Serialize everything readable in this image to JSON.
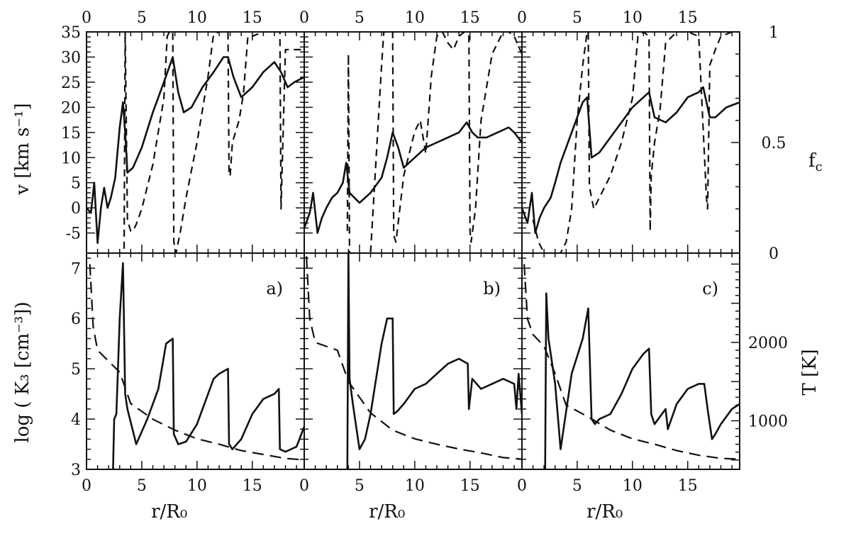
{
  "chart_data": [
    {
      "panel": "a)",
      "type": "line",
      "top": {
        "xlim": [
          0,
          19.7
        ],
        "ylim_left": [
          -9,
          35
        ],
        "ylim_right": [
          0,
          1.0
        ],
        "series": [
          {
            "axis": "left",
            "style": "solid",
            "x": [
              0,
              0.4,
              0.7,
              1.0,
              1.3,
              1.6,
              1.9,
              2.2,
              2.6,
              3.0,
              3.3,
              3.5,
              3.7,
              4.2,
              5.0,
              6.0,
              7.0,
              7.8,
              8.3,
              8.8,
              9.5,
              10.5,
              11.5,
              12.4,
              12.8,
              13.3,
              14.0,
              15.0,
              16.0,
              17.0,
              17.6,
              18.2,
              18.8,
              19.7
            ],
            "y": [
              0,
              -1,
              5,
              -7,
              0,
              4,
              0,
              2,
              6,
              16,
              21,
              15,
              7,
              8,
              12,
              19,
              25,
              30,
              23,
              19,
              20,
              24,
              27,
              30,
              30,
              26,
              22,
              24,
              27,
              29,
              27,
              24,
              25,
              26
            ]
          },
          {
            "axis": "right",
            "style": "dashed",
            "x": [
              2.7,
              3.4,
              3.5,
              3.7,
              4.0,
              4.2,
              4.5,
              5.0,
              6.0,
              7.0,
              7.3,
              7.5,
              7.8,
              7.9,
              8.1,
              8.5,
              9.0,
              10.0,
              11.0,
              11.5,
              12.0,
              12.4,
              12.8,
              12.9,
              13.0,
              13.2,
              13.8,
              14.2,
              14.6,
              15.0,
              16.0,
              17.0,
              17.5,
              17.6,
              18.0,
              19.7
            ],
            "y": [
              0,
              0.0,
              1.0,
              0.15,
              0.1,
              0.1,
              0.13,
              0.2,
              0.4,
              0.7,
              0.98,
              1.0,
              1.0,
              0.05,
              0.0,
              0.1,
              0.25,
              0.5,
              0.8,
              0.99,
              1.0,
              1.0,
              1.0,
              0.35,
              0.35,
              0.5,
              0.6,
              0.72,
              0.98,
              0.98,
              1.0,
              1.0,
              1.0,
              0.2,
              0.92,
              0.92
            ]
          }
        ]
      },
      "bottom": {
        "xlim": [
          0,
          19.7
        ],
        "ylim_left": [
          3,
          7.3
        ],
        "ylim_right": [
          380,
          3140
        ],
        "series": [
          {
            "axis": "left",
            "style": "solid",
            "x": [
              2.4,
              2.5,
              2.7,
              3.0,
              3.3,
              3.5,
              3.7,
              4.5,
              5.5,
              6.5,
              7.2,
              7.8,
              7.9,
              8.3,
              9.0,
              10.0,
              11.0,
              11.5,
              12.0,
              12.8,
              12.9,
              13.2,
              14.0,
              15.0,
              16.0,
              17.0,
              17.4,
              17.5,
              18.0,
              19.0,
              19.7
            ],
            "y": [
              3.0,
              4.0,
              4.1,
              6.0,
              7.1,
              4.5,
              4.2,
              3.5,
              4.0,
              4.6,
              5.5,
              5.6,
              3.7,
              3.5,
              3.55,
              3.9,
              4.5,
              4.8,
              4.9,
              5.0,
              3.5,
              3.4,
              3.6,
              4.1,
              4.4,
              4.5,
              4.6,
              3.4,
              3.35,
              3.45,
              3.85
            ]
          },
          {
            "axis": "right",
            "style": "longdash",
            "x": [
              0.3,
              0.6,
              1.0,
              2.0,
              3.0,
              4.0,
              6.0,
              8.0,
              10.0,
              12.0,
              14.0,
              16.0,
              18.0,
              19.7
            ],
            "y": [
              3000,
              2200,
              1900,
              1760,
              1620,
              1220,
              1020,
              880,
              770,
              700,
              620,
              570,
              520,
              500
            ]
          }
        ]
      }
    },
    {
      "panel": "b)",
      "type": "line",
      "top": {
        "xlim": [
          0,
          19.7
        ],
        "ylim_left": [
          -9,
          35
        ],
        "ylim_right": [
          0,
          1.0
        ],
        "series": [
          {
            "axis": "left",
            "style": "solid",
            "x": [
              0,
              0.5,
              0.8,
              1.2,
              1.6,
              2.0,
              2.5,
              3.0,
              3.5,
              3.8,
              4.1,
              5.0,
              6.0,
              7.0,
              7.5,
              8.0,
              8.5,
              9.0,
              10.0,
              11.0,
              12.0,
              13.0,
              14.0,
              14.7,
              15.2,
              15.7,
              16.5,
              17.5,
              18.5,
              19.0,
              19.7
            ],
            "y": [
              -4,
              -1,
              3,
              -5,
              -2,
              0,
              2,
              3,
              5,
              9,
              3,
              1,
              3,
              6,
              10,
              15,
              12,
              8,
              10,
              12,
              13,
              14,
              15,
              17,
              15,
              14,
              14,
              15,
              16,
              15,
              13
            ]
          },
          {
            "axis": "right",
            "style": "dashed",
            "x": [
              3.9,
              4.0,
              4.1,
              4.5,
              5.0,
              6.0,
              7.0,
              7.2,
              7.5,
              8.0,
              8.1,
              8.3,
              9.0,
              10.0,
              10.5,
              11.0,
              11.5,
              12.0,
              12.5,
              13.0,
              13.5,
              14.0,
              14.5,
              14.9,
              15.0,
              15.1,
              15.5,
              16.0,
              17.0,
              18.0,
              18.5,
              19.0,
              19.7
            ],
            "y": [
              0.1,
              0.9,
              0.0,
              0.0,
              0.0,
              0.0,
              0.85,
              1.0,
              1.0,
              1.0,
              0.08,
              0.05,
              0.35,
              0.55,
              0.6,
              0.45,
              0.8,
              0.98,
              1.0,
              0.95,
              0.92,
              0.98,
              1.0,
              0.98,
              0.1,
              0.05,
              0.2,
              0.6,
              0.9,
              1.0,
              1.0,
              0.98,
              0.9
            ]
          }
        ]
      },
      "bottom": {
        "xlim": [
          0,
          19.7
        ],
        "ylim_left": [
          3,
          7.3
        ],
        "ylim_right": [
          380,
          3140
        ],
        "series": [
          {
            "axis": "left",
            "style": "solid",
            "x": [
              3.9,
              4.0,
              4.1,
              4.4,
              5.0,
              5.5,
              6.0,
              7.0,
              7.5,
              8.0,
              8.1,
              8.4,
              9.0,
              10.0,
              11.0,
              12.0,
              13.0,
              14.0,
              14.8,
              14.9,
              15.2,
              16.0,
              17.0,
              18.0,
              19.0,
              19.2,
              19.4,
              19.7
            ],
            "y": [
              3.0,
              7.3,
              4.8,
              4.3,
              3.4,
              3.6,
              4.1,
              5.5,
              6.0,
              6.0,
              4.1,
              4.15,
              4.3,
              4.6,
              4.7,
              4.9,
              5.1,
              5.2,
              5.1,
              4.2,
              4.8,
              4.6,
              4.7,
              4.8,
              4.7,
              4.2,
              4.9,
              4.1
            ]
          },
          {
            "axis": "right",
            "style": "longdash",
            "x": [
              0.2,
              0.5,
              1.0,
              2.0,
              3.0,
              4.0,
              6.0,
              8.0,
              10.0,
              12.0,
              14.0,
              16.0,
              18.0,
              19.7
            ],
            "y": [
              3100,
              2300,
              2000,
              1950,
              1900,
              1500,
              1100,
              880,
              770,
              700,
              640,
              590,
              530,
              510
            ]
          }
        ]
      }
    },
    {
      "panel": "c)",
      "type": "line",
      "top": {
        "xlim": [
          0,
          19.7
        ],
        "ylim_left": [
          -9,
          35
        ],
        "ylim_right": [
          0,
          1.0
        ],
        "series": [
          {
            "axis": "left",
            "style": "solid",
            "x": [
              0,
              0.5,
              0.9,
              1.2,
              1.6,
              2.0,
              2.6,
              3.0,
              3.5,
              4.5,
              5.5,
              5.9,
              6.3,
              7.0,
              8.0,
              9.0,
              10.0,
              11.0,
              11.5,
              12.0,
              13.0,
              14.0,
              15.0,
              16.0,
              16.4,
              17.0,
              17.5,
              18.5,
              19.7
            ],
            "y": [
              0,
              -3,
              3,
              -5,
              -2,
              0,
              2,
              5,
              9,
              15,
              21,
              22,
              10,
              11,
              14,
              17,
              20,
              22,
              23,
              18,
              17,
              19,
              22,
              23,
              24,
              18,
              18,
              20,
              21
            ]
          },
          {
            "axis": "right",
            "style": "dashed",
            "x": [
              1.0,
              1.5,
              2.0,
              2.5,
              3.0,
              3.5,
              4.0,
              4.5,
              5.0,
              5.5,
              5.9,
              6.0,
              6.1,
              6.5,
              7.0,
              8.0,
              9.0,
              10.0,
              10.5,
              11.0,
              11.5,
              11.6,
              11.7,
              12.0,
              12.5,
              13.0,
              14.0,
              15.0,
              16.0,
              16.7,
              16.8,
              17.0,
              17.5,
              18.0,
              19.0,
              19.7
            ],
            "y": [
              0.15,
              0.05,
              0.0,
              0.0,
              0.0,
              0.0,
              0.05,
              0.2,
              0.6,
              0.85,
              1.0,
              1.0,
              0.3,
              0.2,
              0.25,
              0.35,
              0.5,
              0.7,
              0.98,
              1.0,
              0.98,
              0.1,
              0.35,
              0.5,
              0.65,
              0.95,
              1.0,
              1.0,
              0.98,
              0.25,
              0.2,
              0.85,
              0.92,
              0.98,
              1.0,
              1.0
            ]
          }
        ]
      },
      "bottom": {
        "xlim": [
          0,
          19.7
        ],
        "ylim_left": [
          3,
          7.3
        ],
        "ylim_right": [
          380,
          3140
        ],
        "series": [
          {
            "axis": "left",
            "style": "solid",
            "x": [
              2.1,
              2.2,
              2.4,
              3.0,
              3.5,
              4.5,
              5.5,
              6.0,
              6.3,
              6.6,
              7.0,
              8.0,
              9.0,
              10.0,
              11.0,
              11.5,
              11.7,
              12.0,
              13.0,
              13.2,
              14.0,
              15.0,
              16.0,
              16.5,
              16.8,
              17.2,
              17.5,
              18.0,
              19.0,
              19.7
            ],
            "y": [
              3.0,
              6.5,
              5.6,
              4.7,
              3.4,
              4.9,
              5.6,
              6.2,
              4.0,
              3.9,
              4.0,
              4.1,
              4.5,
              5.0,
              5.3,
              5.4,
              4.1,
              3.9,
              4.2,
              3.8,
              4.3,
              4.6,
              4.7,
              4.7,
              4.2,
              3.6,
              3.7,
              3.9,
              4.2,
              4.3
            ]
          },
          {
            "axis": "right",
            "style": "longdash",
            "x": [
              0.2,
              0.5,
              1.0,
              2.0,
              3.0,
              4.0,
              6.0,
              8.0,
              10.0,
              12.0,
              14.0,
              16.0,
              18.0,
              19.7
            ],
            "y": [
              3000,
              2300,
              2100,
              1950,
              1600,
              1200,
              1050,
              880,
              770,
              700,
              620,
              560,
              520,
              510
            ]
          }
        ]
      }
    }
  ],
  "axes": {
    "x_ticks": [
      "0",
      "5",
      "10",
      "15"
    ],
    "x_tick_values": [
      0,
      5,
      10,
      15
    ],
    "xlabel": "r/R₀",
    "top_left_ticks": [
      "35",
      "30",
      "25",
      "20",
      "15",
      "10",
      "5",
      "0",
      "-5"
    ],
    "top_left_tick_values": [
      35,
      30,
      25,
      20,
      15,
      10,
      5,
      0,
      -5
    ],
    "top_left_label": "v [km s⁻¹]",
    "top_right_ticks": [
      "1",
      "0.5",
      "0"
    ],
    "top_right_tick_values": [
      1.0,
      0.5,
      0.0
    ],
    "top_right_label": "f_c",
    "bottom_left_ticks": [
      "7",
      "6",
      "5",
      "4",
      "3"
    ],
    "bottom_left_tick_values": [
      7,
      6,
      5,
      4,
      3
    ],
    "bottom_left_label": "log ( K₃ [cm⁻³])",
    "bottom_right_ticks": [
      "2000",
      "1000"
    ],
    "bottom_right_tick_values": [
      2000,
      1000
    ],
    "bottom_right_label": "T [K]"
  }
}
